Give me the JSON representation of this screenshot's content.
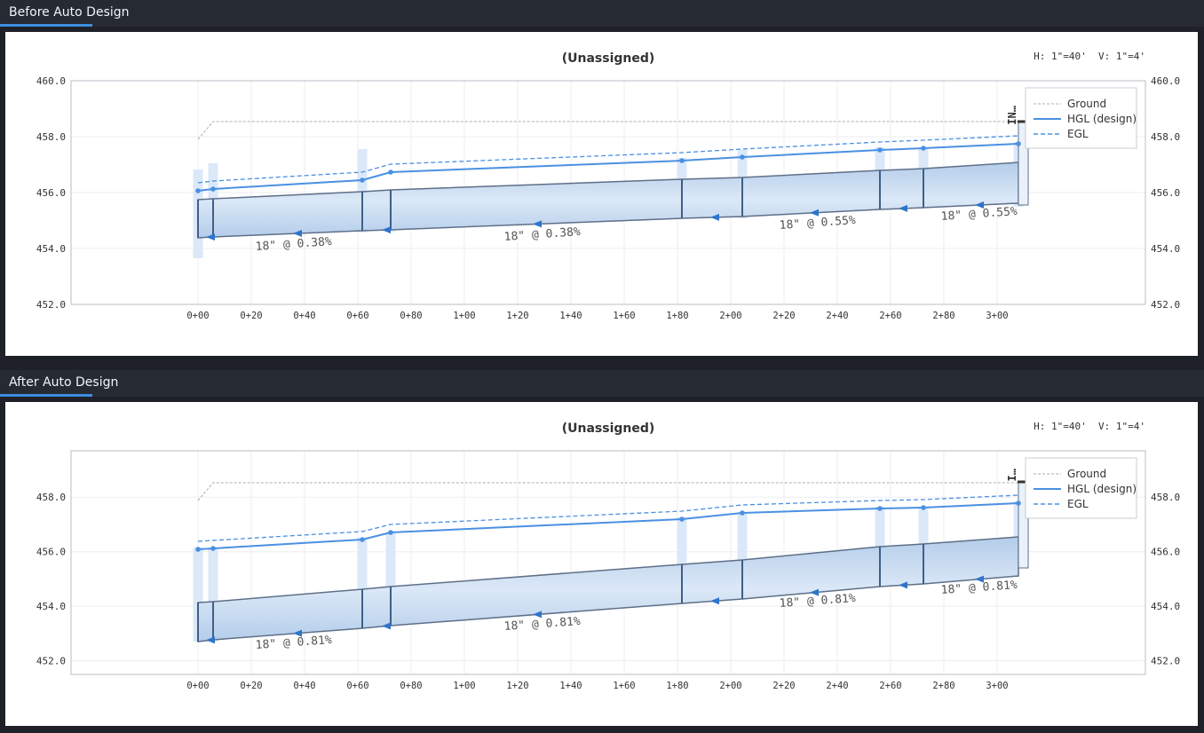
{
  "panels": [
    {
      "tab_label": "Before Auto Design",
      "title": "(Unassigned)",
      "scale": "H: 1\"=40'  V: 1\"=4'",
      "structure_label": "IN…",
      "y_ticks": [
        "460.0",
        "458.0",
        "456.0",
        "454.0",
        "452.0"
      ],
      "y_min": 452,
      "y_max": 460,
      "x_ticks": [
        "0+00",
        "0+20",
        "0+40",
        "0+60",
        "0+80",
        "1+00",
        "1+20",
        "1+40",
        "1+60",
        "1+80",
        "2+00",
        "2+20",
        "2+40",
        "2+60",
        "2+80",
        "3+00"
      ],
      "pipe_labels": [
        "18\" @ 0.38%",
        "18\" @ 0.38%",
        "18\" @ 0.55%",
        "18\" @ 0.55%"
      ]
    },
    {
      "tab_label": "After Auto Design",
      "title": "(Unassigned)",
      "scale": "H: 1\"=40'  V: 1\"=4'",
      "structure_label": "I…",
      "y_ticks": [
        "458.0",
        "456.0",
        "454.0",
        "452.0"
      ],
      "y_min": 451.5,
      "y_max": 459.7,
      "x_ticks": [
        "0+00",
        "0+20",
        "0+40",
        "0+60",
        "0+80",
        "1+00",
        "1+20",
        "1+40",
        "1+60",
        "1+80",
        "2+00",
        "2+20",
        "2+40",
        "2+60",
        "2+80",
        "3+00"
      ],
      "pipe_labels": [
        "18\" @ 0.81%",
        "18\" @ 0.81%",
        "18\" @ 0.81%",
        "18\" @ 0.81%"
      ]
    }
  ],
  "legend": {
    "ground": "Ground",
    "hgl": "HGL (design)",
    "egl": "EGL"
  },
  "colors": {
    "hgl": "#4a90e2",
    "pipe_fill": "#c6d9f0",
    "pipe_stroke": "#5e6f88",
    "ground": "#a9acb3"
  }
}
